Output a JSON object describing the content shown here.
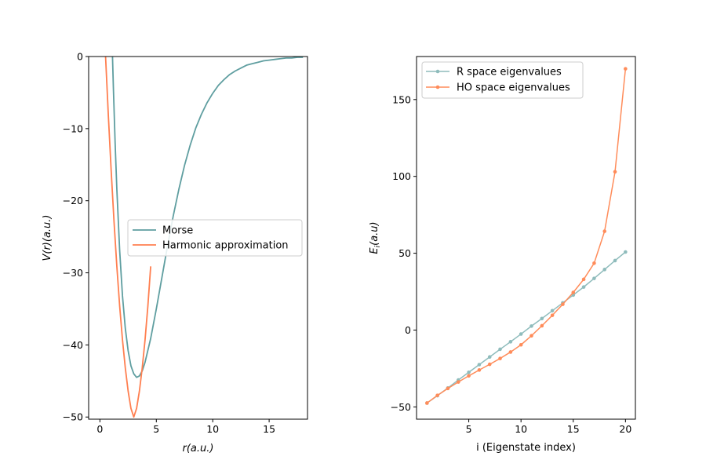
{
  "chart_data": [
    {
      "type": "line",
      "xlabel": "r(a.u.)",
      "ylabel": "V(r)(a.u.)",
      "xlim": [
        -1,
        18.4
      ],
      "ylim": [
        -50.3,
        0
      ],
      "xticks": [
        0,
        5,
        10,
        15
      ],
      "yticks": [
        0,
        -10,
        -20,
        -30,
        -40,
        -50
      ],
      "grid": false,
      "legend_position": "center-right",
      "series": [
        {
          "name": "Morse",
          "color": "#5f9ea0",
          "x": [
            1.0,
            1.1,
            1.2,
            1.35,
            1.5,
            1.75,
            2.0,
            2.25,
            2.5,
            2.75,
            3.0,
            3.25,
            3.5,
            3.75,
            4.0,
            4.5,
            5.0,
            5.5,
            6.0,
            6.5,
            7.0,
            7.5,
            8.0,
            8.5,
            9.0,
            9.5,
            10.0,
            10.5,
            11.0,
            11.5,
            12.0,
            12.5,
            13.0,
            13.5,
            14.0,
            14.5,
            15.0,
            15.5,
            16.0,
            16.5,
            17.0,
            17.5,
            18.0
          ],
          "y": [
            6.9,
            0.8,
            -4.7,
            -12.1,
            -18.4,
            -26.9,
            -33.2,
            -37.7,
            -40.8,
            -42.9,
            -44.0,
            -44.5,
            -44.3,
            -43.6,
            -42.4,
            -39.1,
            -35.0,
            -30.6,
            -26.2,
            -22.1,
            -18.4,
            -15.1,
            -12.3,
            -9.9,
            -8.0,
            -6.4,
            -5.1,
            -4.0,
            -3.2,
            -2.5,
            -2.0,
            -1.6,
            -1.2,
            -1.0,
            -0.8,
            -0.6,
            -0.5,
            -0.4,
            -0.3,
            -0.2,
            -0.2,
            -0.1,
            -0.1
          ]
        },
        {
          "name": "Harmonic approximation",
          "color": "#ff7f50",
          "x": [
            0.5,
            0.75,
            1.0,
            1.25,
            1.5,
            1.75,
            2.0,
            2.25,
            2.5,
            2.75,
            3.0,
            3.25,
            3.5,
            3.75,
            4.0,
            4.25,
            4.5
          ],
          "y": [
            0.0,
            -8.3,
            -15.9,
            -22.9,
            -29.1,
            -34.6,
            -39.3,
            -43.2,
            -46.4,
            -48.8,
            -50.0,
            -48.8,
            -46.4,
            -43.2,
            -39.3,
            -34.6,
            -29.1
          ]
        }
      ]
    },
    {
      "type": "line",
      "xlabel": "i (Eigenstate index)",
      "ylabel": "E_i(a.u)",
      "xlim": [
        0.0,
        20.95
      ],
      "ylim": [
        -58,
        178
      ],
      "xticks": [
        5,
        10,
        15,
        20
      ],
      "yticks": [
        -50,
        0,
        50,
        100,
        150
      ],
      "grid": false,
      "legend_position": "top-left",
      "series": [
        {
          "name": "R space eigenvalues",
          "color": "#8fbcbc",
          "x": [
            1,
            2,
            3,
            4,
            5,
            6,
            7,
            8,
            9,
            10,
            11,
            12,
            13,
            14,
            15,
            16,
            17,
            18,
            19,
            20
          ],
          "y": [
            -47.5,
            -42.7,
            -37.7,
            -32.5,
            -27.5,
            -22.5,
            -17.5,
            -12.5,
            -7.6,
            -2.6,
            2.6,
            7.5,
            12.6,
            17.7,
            22.8,
            28.0,
            33.6,
            39.4,
            45.2,
            50.8
          ]
        },
        {
          "name": "HO space eigenvalues",
          "color": "#ff8c5a",
          "x": [
            1,
            2,
            3,
            4,
            5,
            6,
            7,
            8,
            9,
            10,
            11,
            12,
            13,
            14,
            15,
            16,
            17,
            18,
            19,
            20
          ],
          "y": [
            -47.5,
            -42.5,
            -38.0,
            -33.8,
            -29.8,
            -26.0,
            -22.3,
            -18.5,
            -14.3,
            -9.6,
            -3.7,
            2.8,
            9.6,
            16.8,
            24.5,
            33.0,
            43.5,
            64.3,
            103.0,
            170.0
          ]
        }
      ]
    }
  ]
}
